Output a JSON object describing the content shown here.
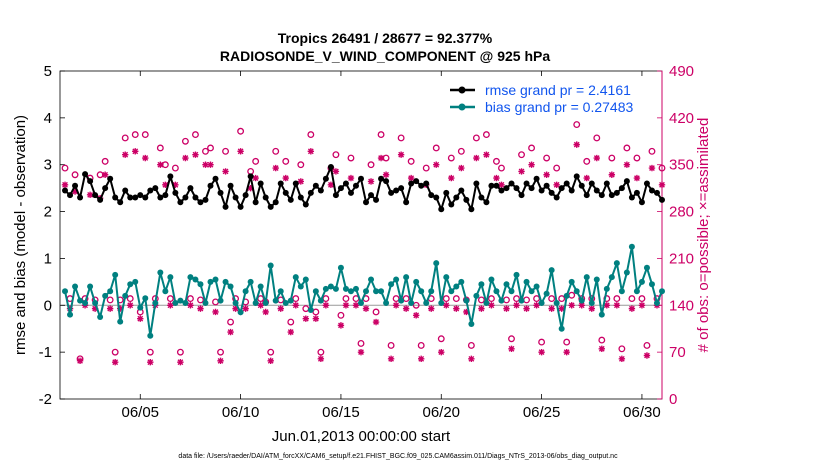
{
  "colors": {
    "rmse": "#000000",
    "bias": "#008080",
    "obs": "#cc0066",
    "zero": "#999999",
    "axis": "#000000"
  },
  "chart_data": {
    "type": "line",
    "title_line1": "Tropics 26491 / 28677 = 92.377%",
    "title_line2": "RADIOSONDE_V_WIND_COMPONENT @ 925 hPa",
    "xlabel": "Jun.01,2013 00:00:00 start",
    "ylabel_left": "rmse and bias (model - observation)",
    "ylabel_right": "# of obs: o=possible; ×=assimilated",
    "footer": "data file: /Users/raeder/DAI/ATM_forcXX/CAM6_setup/f.e21.FHIST_BGC.f09_025.CAM6assim.011/Diags_NTrS_2013-06/obs_diag_output.nc",
    "xlim": [
      1,
      31
    ],
    "ylim_left": [
      -2,
      5
    ],
    "ylim_right": [
      0,
      490
    ],
    "xticks": [
      5,
      10,
      15,
      20,
      25,
      30
    ],
    "xtick_labels": [
      "06/05",
      "06/10",
      "06/15",
      "06/20",
      "06/25",
      "06/30"
    ],
    "yticks_left": [
      -2,
      -1,
      0,
      1,
      2,
      3,
      4,
      5
    ],
    "yticks_left_labels": [
      "-2",
      "-1",
      "0",
      "1",
      "2",
      "3",
      "4",
      "5"
    ],
    "yticks_right": [
      0,
      70,
      140,
      210,
      280,
      350,
      420,
      490
    ],
    "yticks_right_labels": [
      "0",
      "70",
      "140",
      "210",
      "280",
      "350",
      "420",
      "490"
    ],
    "legend": [
      "rmse grand pr = 2.4161",
      "bias grand pr = 0.27483"
    ],
    "x_start": 1.25,
    "x_step": 0.25,
    "series": [
      {
        "name": "rmse",
        "axis": "left",
        "values": [
          2.45,
          2.35,
          2.55,
          2.3,
          2.8,
          2.65,
          2.35,
          2.25,
          2.5,
          2.7,
          2.3,
          2.2,
          2.45,
          2.3,
          2.3,
          2.35,
          2.3,
          2.45,
          2.5,
          2.3,
          2.35,
          2.75,
          2.4,
          2.2,
          2.3,
          2.5,
          2.3,
          2.2,
          2.25,
          2.55,
          2.7,
          2.4,
          2.1,
          2.55,
          2.3,
          2.1,
          2.35,
          2.75,
          2.2,
          2.6,
          2.3,
          2.1,
          2.2,
          2.6,
          2.4,
          2.25,
          2.6,
          2.3,
          2.15,
          2.4,
          2.55,
          2.45,
          2.7,
          2.95,
          2.35,
          2.5,
          2.6,
          2.4,
          2.55,
          2.7,
          2.2,
          2.35,
          2.25,
          2.7,
          2.65,
          2.4,
          2.45,
          2.5,
          2.2,
          2.6,
          2.65,
          2.55,
          2.6,
          2.35,
          2.3,
          2.05,
          2.4,
          2.15,
          2.3,
          2.45,
          2.25,
          2.05,
          2.6,
          2.3,
          2.2,
          2.55,
          2.55,
          2.45,
          2.5,
          2.6,
          2.5,
          2.35,
          2.6,
          2.5,
          2.7,
          2.45,
          2.55,
          2.4,
          2.3,
          2.5,
          2.6,
          2.45,
          2.75,
          2.55,
          2.35,
          2.6,
          2.45,
          2.35,
          2.6,
          2.35,
          2.4,
          2.5,
          2.65,
          2.3,
          2.4,
          2.2,
          2.6,
          2.45,
          2.4,
          2.25
        ]
      },
      {
        "name": "bias",
        "axis": "left",
        "values": [
          0.3,
          -0.2,
          0.4,
          0.1,
          0.05,
          0.4,
          0.05,
          -0.25,
          0.2,
          0.3,
          0.65,
          -0.35,
          0.2,
          0.45,
          0.5,
          -0.05,
          0.15,
          -0.65,
          0.05,
          0.7,
          0.3,
          0.6,
          0.05,
          0.1,
          0.05,
          0.6,
          0.55,
          0.45,
          0.05,
          0.5,
          0.55,
          0.1,
          0.5,
          0.4,
          0.05,
          -0.15,
          0.3,
          0.5,
          0.05,
          0.4,
          0.05,
          0.85,
          0.1,
          0.3,
          0.05,
          0.1,
          0.6,
          0.4,
          0.55,
          -0.1,
          0.3,
          0.1,
          0.35,
          0.4,
          0.35,
          0.8,
          0.35,
          0.3,
          0.35,
          0.05,
          0.3,
          0.55,
          0.3,
          0.3,
          0.05,
          0.45,
          0.55,
          0.1,
          0.6,
          0.05,
          0.5,
          0.3,
          0.05,
          0.3,
          0.9,
          0.05,
          0.6,
          0.3,
          0.4,
          0.5,
          0.1,
          -0.4,
          0.2,
          0.45,
          0.05,
          0.55,
          0.3,
          0.1,
          0.45,
          0.3,
          0.65,
          0.1,
          0.5,
          0.3,
          0.4,
          0.05,
          0.25,
          0.75,
          0.05,
          -0.5,
          0.2,
          0.5,
          0.3,
          0.1,
          0.6,
          0.05,
          0.55,
          -0.2,
          0.35,
          0.6,
          0.9,
          0.3,
          0.7,
          1.25,
          0.3,
          0.5,
          0.8,
          0.45,
          0.05,
          0.3
        ]
      },
      {
        "name": "obs_possible",
        "axis": "right",
        "values": [
          345,
          150,
          335,
          60,
          150,
          330,
          148,
          335,
          355,
          148,
          70,
          148,
          390,
          150,
          395,
          130,
          395,
          70,
          150,
          375,
          350,
          150,
          345,
          70,
          385,
          150,
          395,
          148,
          370,
          375,
          145,
          70,
          370,
          115,
          150,
          400,
          145,
          340,
          355,
          150,
          145,
          70,
          370,
          148,
          355,
          115,
          150,
          350,
          135,
          395,
          130,
          70,
          150,
          345,
          365,
          125,
          150,
          360,
          150,
          83,
          150,
          350,
          130,
          395,
          360,
          80,
          150,
          390,
          150,
          355,
          140,
          80,
          345,
          150,
          375,
          90,
          150,
          360,
          150,
          370,
          148,
          80,
          390,
          148,
          395,
          150,
          355,
          345,
          148,
          90,
          150,
          365,
          148,
          375,
          150,
          85,
          360,
          150,
          345,
          150,
          85,
          155,
          410,
          150,
          355,
          150,
          390,
          88,
          150,
          360,
          150,
          75,
          375,
          150,
          360,
          150,
          80,
          370,
          150,
          345
        ]
      },
      {
        "name": "obs_assimilated",
        "axis": "right",
        "values": [
          320,
          135,
          310,
          57,
          140,
          305,
          135,
          300,
          335,
          135,
          55,
          135,
          365,
          140,
          370,
          120,
          360,
          55,
          140,
          350,
          320,
          140,
          320,
          55,
          360,
          140,
          365,
          135,
          350,
          350,
          130,
          57,
          340,
          100,
          135,
          370,
          135,
          315,
          330,
          140,
          130,
          57,
          345,
          135,
          330,
          100,
          140,
          325,
          120,
          370,
          120,
          60,
          140,
          320,
          340,
          110,
          140,
          330,
          140,
          70,
          135,
          325,
          115,
          360,
          335,
          60,
          140,
          365,
          135,
          330,
          125,
          60,
          320,
          135,
          350,
          70,
          140,
          330,
          135,
          345,
          130,
          60,
          360,
          135,
          365,
          140,
          330,
          320,
          135,
          75,
          140,
          340,
          135,
          350,
          140,
          70,
          335,
          135,
          320,
          135,
          70,
          140,
          380,
          140,
          330,
          135,
          360,
          75,
          140,
          335,
          140,
          60,
          350,
          135,
          330,
          140,
          65,
          345,
          140,
          320
        ]
      }
    ]
  }
}
